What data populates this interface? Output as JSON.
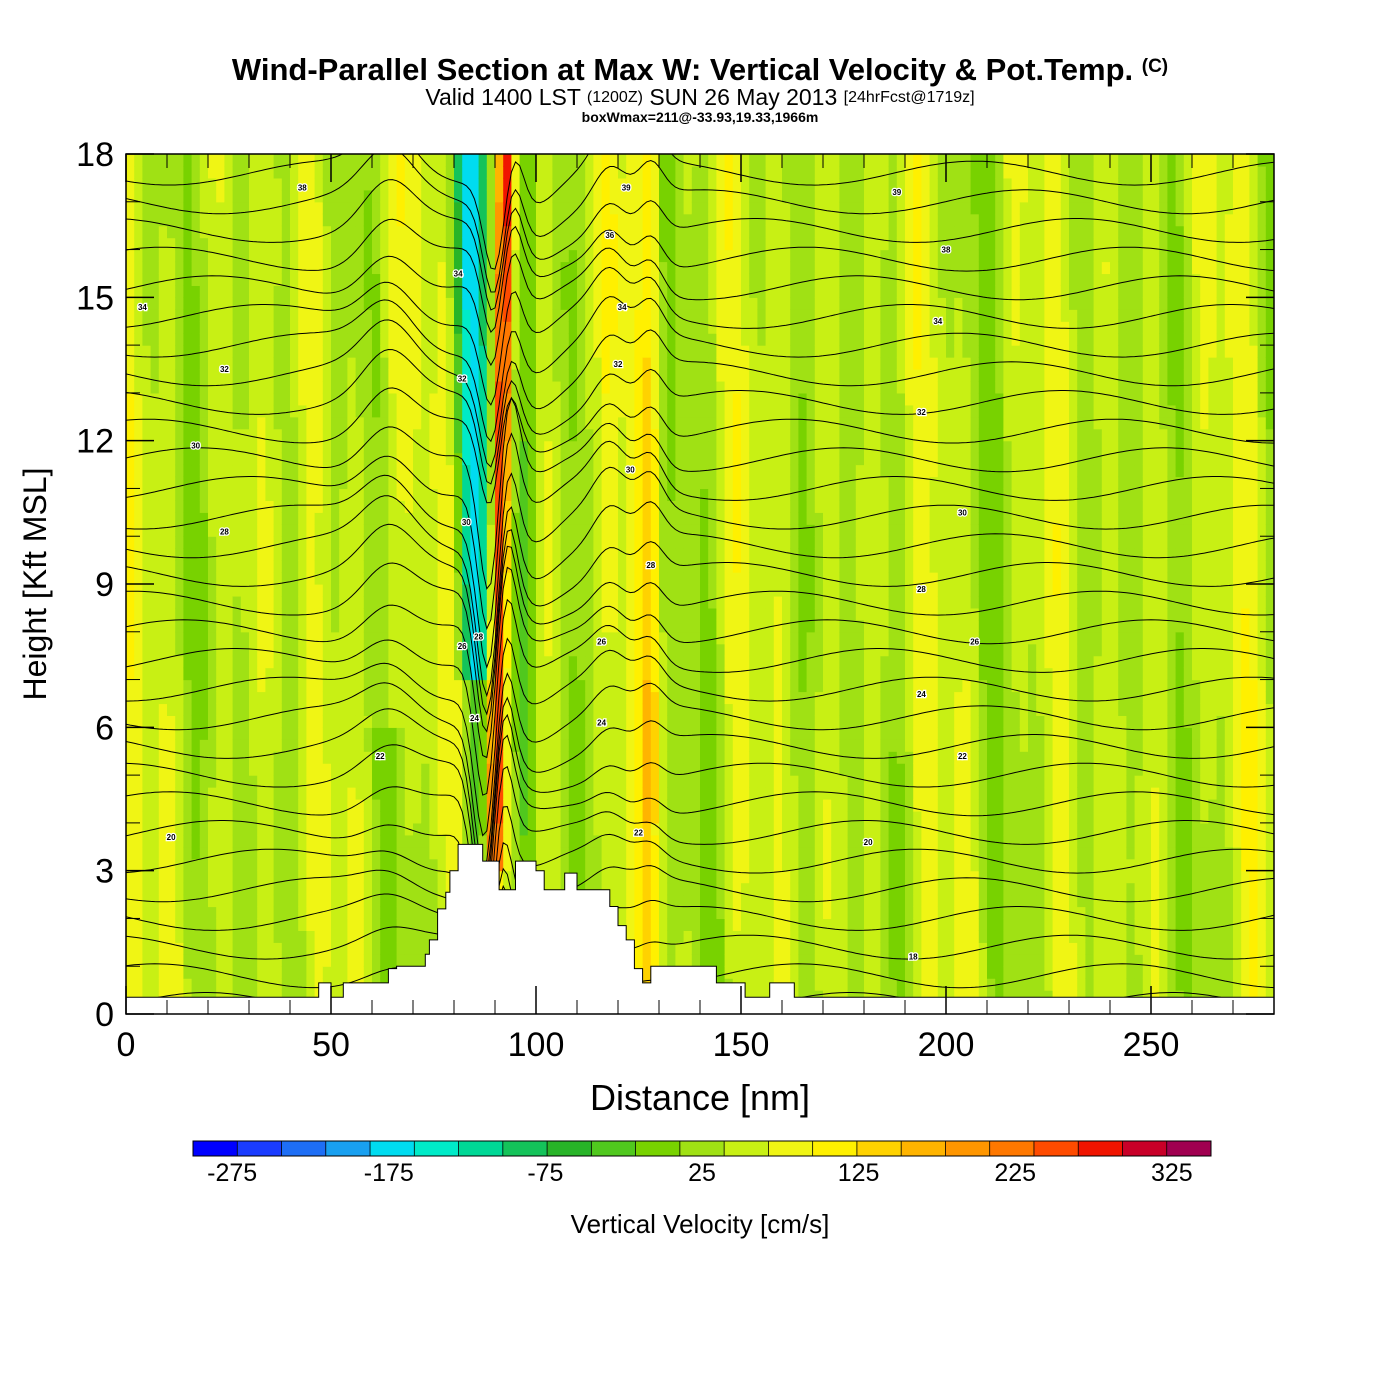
{
  "header": {
    "title_main": "Wind-Parallel Section at Max W: Vertical Velocity & Pot.Temp.",
    "title_copyright": "(C)",
    "subtitle_valid": "Valid 1400 LST",
    "subtitle_zulu": "(1200Z)",
    "subtitle_date": "SUN 26 May 2013",
    "subtitle_forecast": "[24hrFcst@1719z]",
    "info_line": "boxWmax=211@-33.93,19.33,1966m"
  },
  "colors": {
    "scale": [
      "#0000ff",
      "#1a3cff",
      "#1e6ef5",
      "#19a0f0",
      "#00dcf0",
      "#00ebc8",
      "#00d896",
      "#14c35a",
      "#28b428",
      "#50c81e",
      "#78d200",
      "#a0e114",
      "#c8f014",
      "#f0f514",
      "#fff000",
      "#ffd200",
      "#ffb400",
      "#ff9600",
      "#ff7800",
      "#ff4b00",
      "#f01400",
      "#c80028",
      "#a00050"
    ]
  },
  "chart_data": {
    "type": "heatmap",
    "xlabel": "Distance [nm]",
    "ylabel": "Height [Kft MSL]",
    "xlim": [
      0,
      280
    ],
    "ylim": [
      0,
      18
    ],
    "x_ticks": [
      0,
      50,
      100,
      150,
      200,
      250
    ],
    "y_ticks": [
      0,
      3,
      6,
      9,
      12,
      15,
      18
    ],
    "colorbar": {
      "label": "Vertical Velocity [cm/s]",
      "min": -300,
      "max": 350,
      "step": 25,
      "tick_labels": [
        "-275",
        "-175",
        "-75",
        "25",
        "125",
        "225",
        "325"
      ]
    },
    "max_updraft_cm_s": 211,
    "updraft_core_x_nm": 91,
    "contour_labels": [
      {
        "text": "38",
        "x": 43,
        "y": 17.3
      },
      {
        "text": "34",
        "x": 4,
        "y": 14.8
      },
      {
        "text": "32",
        "x": 24,
        "y": 13.5
      },
      {
        "text": "30",
        "x": 17,
        "y": 11.9
      },
      {
        "text": "28",
        "x": 24,
        "y": 10.1
      },
      {
        "text": "22",
        "x": 62,
        "y": 5.4
      },
      {
        "text": "20",
        "x": 11,
        "y": 3.7
      },
      {
        "text": "39",
        "x": 122,
        "y": 17.3
      },
      {
        "text": "36",
        "x": 118,
        "y": 16.3
      },
      {
        "text": "34",
        "x": 121,
        "y": 14.8
      },
      {
        "text": "32",
        "x": 120,
        "y": 13.6
      },
      {
        "text": "30",
        "x": 123,
        "y": 11.4
      },
      {
        "text": "28",
        "x": 128,
        "y": 9.4
      },
      {
        "text": "26",
        "x": 116,
        "y": 7.8
      },
      {
        "text": "24",
        "x": 116,
        "y": 6.1
      },
      {
        "text": "22",
        "x": 125,
        "y": 3.8
      },
      {
        "text": "39",
        "x": 188,
        "y": 17.2
      },
      {
        "text": "38",
        "x": 200,
        "y": 16.0
      },
      {
        "text": "34",
        "x": 198,
        "y": 14.5
      },
      {
        "text": "32",
        "x": 194,
        "y": 12.6
      },
      {
        "text": "30",
        "x": 204,
        "y": 10.5
      },
      {
        "text": "28",
        "x": 194,
        "y": 8.9
      },
      {
        "text": "26",
        "x": 207,
        "y": 7.8
      },
      {
        "text": "24",
        "x": 194,
        "y": 6.7
      },
      {
        "text": "22",
        "x": 204,
        "y": 5.4
      },
      {
        "text": "20",
        "x": 181,
        "y": 3.6
      },
      {
        "text": "18",
        "x": 192,
        "y": 1.2
      },
      {
        "text": "34",
        "x": 81,
        "y": 15.5
      },
      {
        "text": "32",
        "x": 82,
        "y": 13.3
      },
      {
        "text": "30",
        "x": 83,
        "y": 10.3
      },
      {
        "text": "28",
        "x": 86,
        "y": 7.9
      },
      {
        "text": "26",
        "x": 82,
        "y": 7.7
      },
      {
        "text": "24",
        "x": 85,
        "y": 6.2
      }
    ]
  }
}
